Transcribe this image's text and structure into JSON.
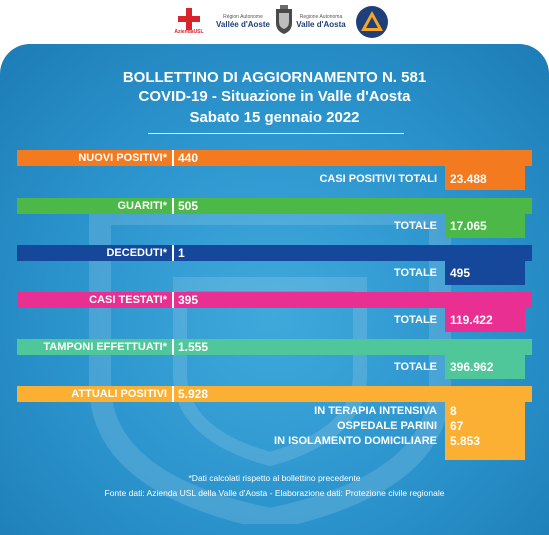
{
  "header": {
    "usl_logo_text": "AziendaUSL",
    "region_small": "Région Autonome",
    "region_big": "Vallée d'Aoste",
    "region2_small": "Regione Autonoma",
    "region2_big": "Valle d'Aosta"
  },
  "title": {
    "line1": "BOLLETTINO DI AGGIORNAMENTO N. 581",
    "line2": "COVID-19 - Situazione in Valle d'Aosta",
    "line3": "Sabato 15 gennaio 2022"
  },
  "rows": {
    "nuovi_positivi": {
      "label": "NUOVI POSITIVI*",
      "value": "440",
      "total_label": "CASI POSITIVI TOTALI",
      "total_value": "23.488"
    },
    "guariti": {
      "label": "GUARITI*",
      "value": "505",
      "total_label": "TOTALE",
      "total_value": "17.065"
    },
    "deceduti": {
      "label": "DECEDUTI*",
      "value": "1",
      "total_label": "TOTALE",
      "total_value": "495"
    },
    "casi_testati": {
      "label": "CASI TESTATI*",
      "value": "395",
      "total_label": "TOTALE",
      "total_value": "119.422"
    },
    "tamponi": {
      "label": "TAMPONI EFFETTUATI*",
      "value": "1.555",
      "total_label": "TOTALE",
      "total_value": "396.962"
    },
    "attuali_positivi": {
      "label": "ATTUALI POSITIVI",
      "value": "5.928",
      "breakdown": [
        {
          "label": "IN TERAPIA INTENSIVA",
          "value": "8"
        },
        {
          "label": "OSPEDALE PARINI",
          "value": "67"
        },
        {
          "label": "IN ISOLAMENTO DOMICILIARE",
          "value": "5.853"
        }
      ]
    }
  },
  "footer": {
    "note": "*Dati calcolati rispetto al bollettino precedente",
    "source": "Fonte dati: Azienda USL della Valle d'Aosta - Elaborazione dati: Protezione civile regionale"
  },
  "colors": {
    "orange": "#f47a20",
    "green": "#4bb848",
    "navy": "#15489a",
    "pink": "#ea2f93",
    "teal": "#4fc79a",
    "yellow": "#fbb034",
    "panel_blue": "#2b93cc"
  }
}
